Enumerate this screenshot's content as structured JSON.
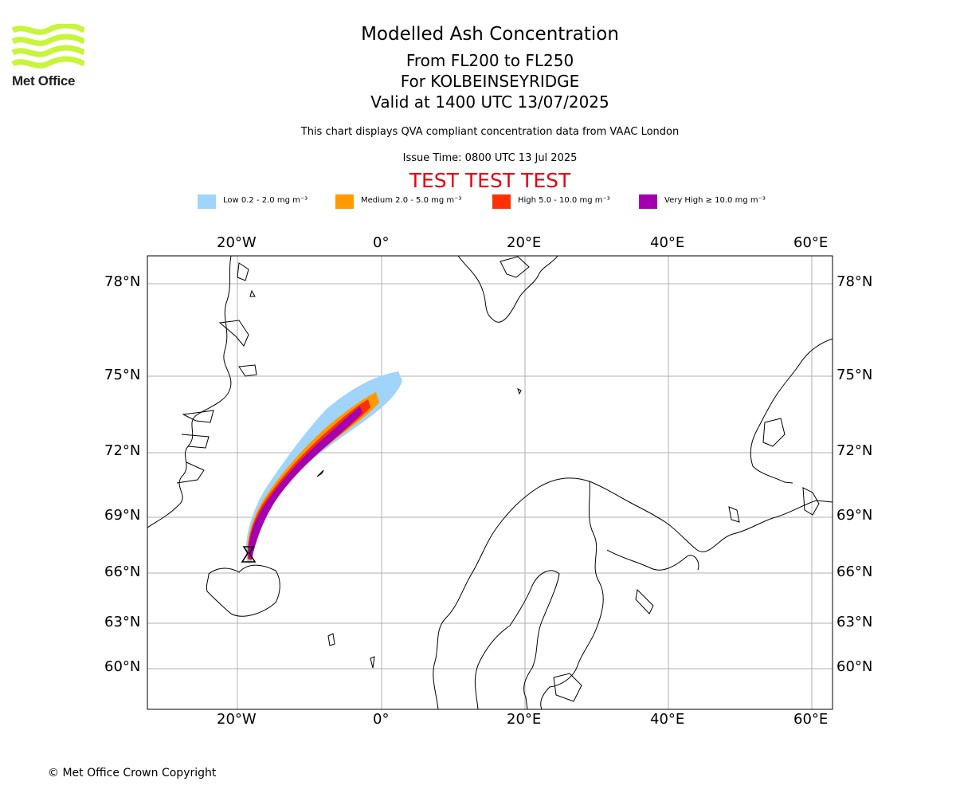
{
  "header": {
    "logo_text": "Met Office",
    "title": "Modelled Ash Concentration",
    "subtitle_levels": "From FL200 to FL250",
    "subtitle_source": "For KOLBEINSEYRIDGE",
    "subtitle_valid": "Valid at 1400 UTC 13/07/2025",
    "compliance_note": "This chart displays QVA compliant concentration data from VAAC London",
    "issue_time": "Issue Time: 0800 UTC 13 Jul 2025",
    "test_banner": "TEST TEST TEST",
    "test_color": "#e8000b"
  },
  "legend": [
    {
      "label": "Low 0.2 - 2.0 mg m⁻³",
      "color": "#a0d4fa"
    },
    {
      "label": "Medium 2.0 - 5.0 mg m⁻³",
      "color": "#ff9a00"
    },
    {
      "label": "High 5.0 - 10.0 mg m⁻³",
      "color": "#ff3000"
    },
    {
      "label": "Very High ≥ 10.0 mg m⁻³",
      "color": "#a400b0"
    }
  ],
  "map": {
    "lon_ticks": [
      "20°W",
      "0°",
      "20°E",
      "40°E",
      "60°E"
    ],
    "lat_ticks": [
      "78°N",
      "75°N",
      "72°N",
      "69°N",
      "66°N",
      "63°N",
      "60°N"
    ],
    "grid": true,
    "source_marker": "volcano-source-icon"
  },
  "footer": {
    "copyright": "© Met Office Crown Copyright"
  }
}
